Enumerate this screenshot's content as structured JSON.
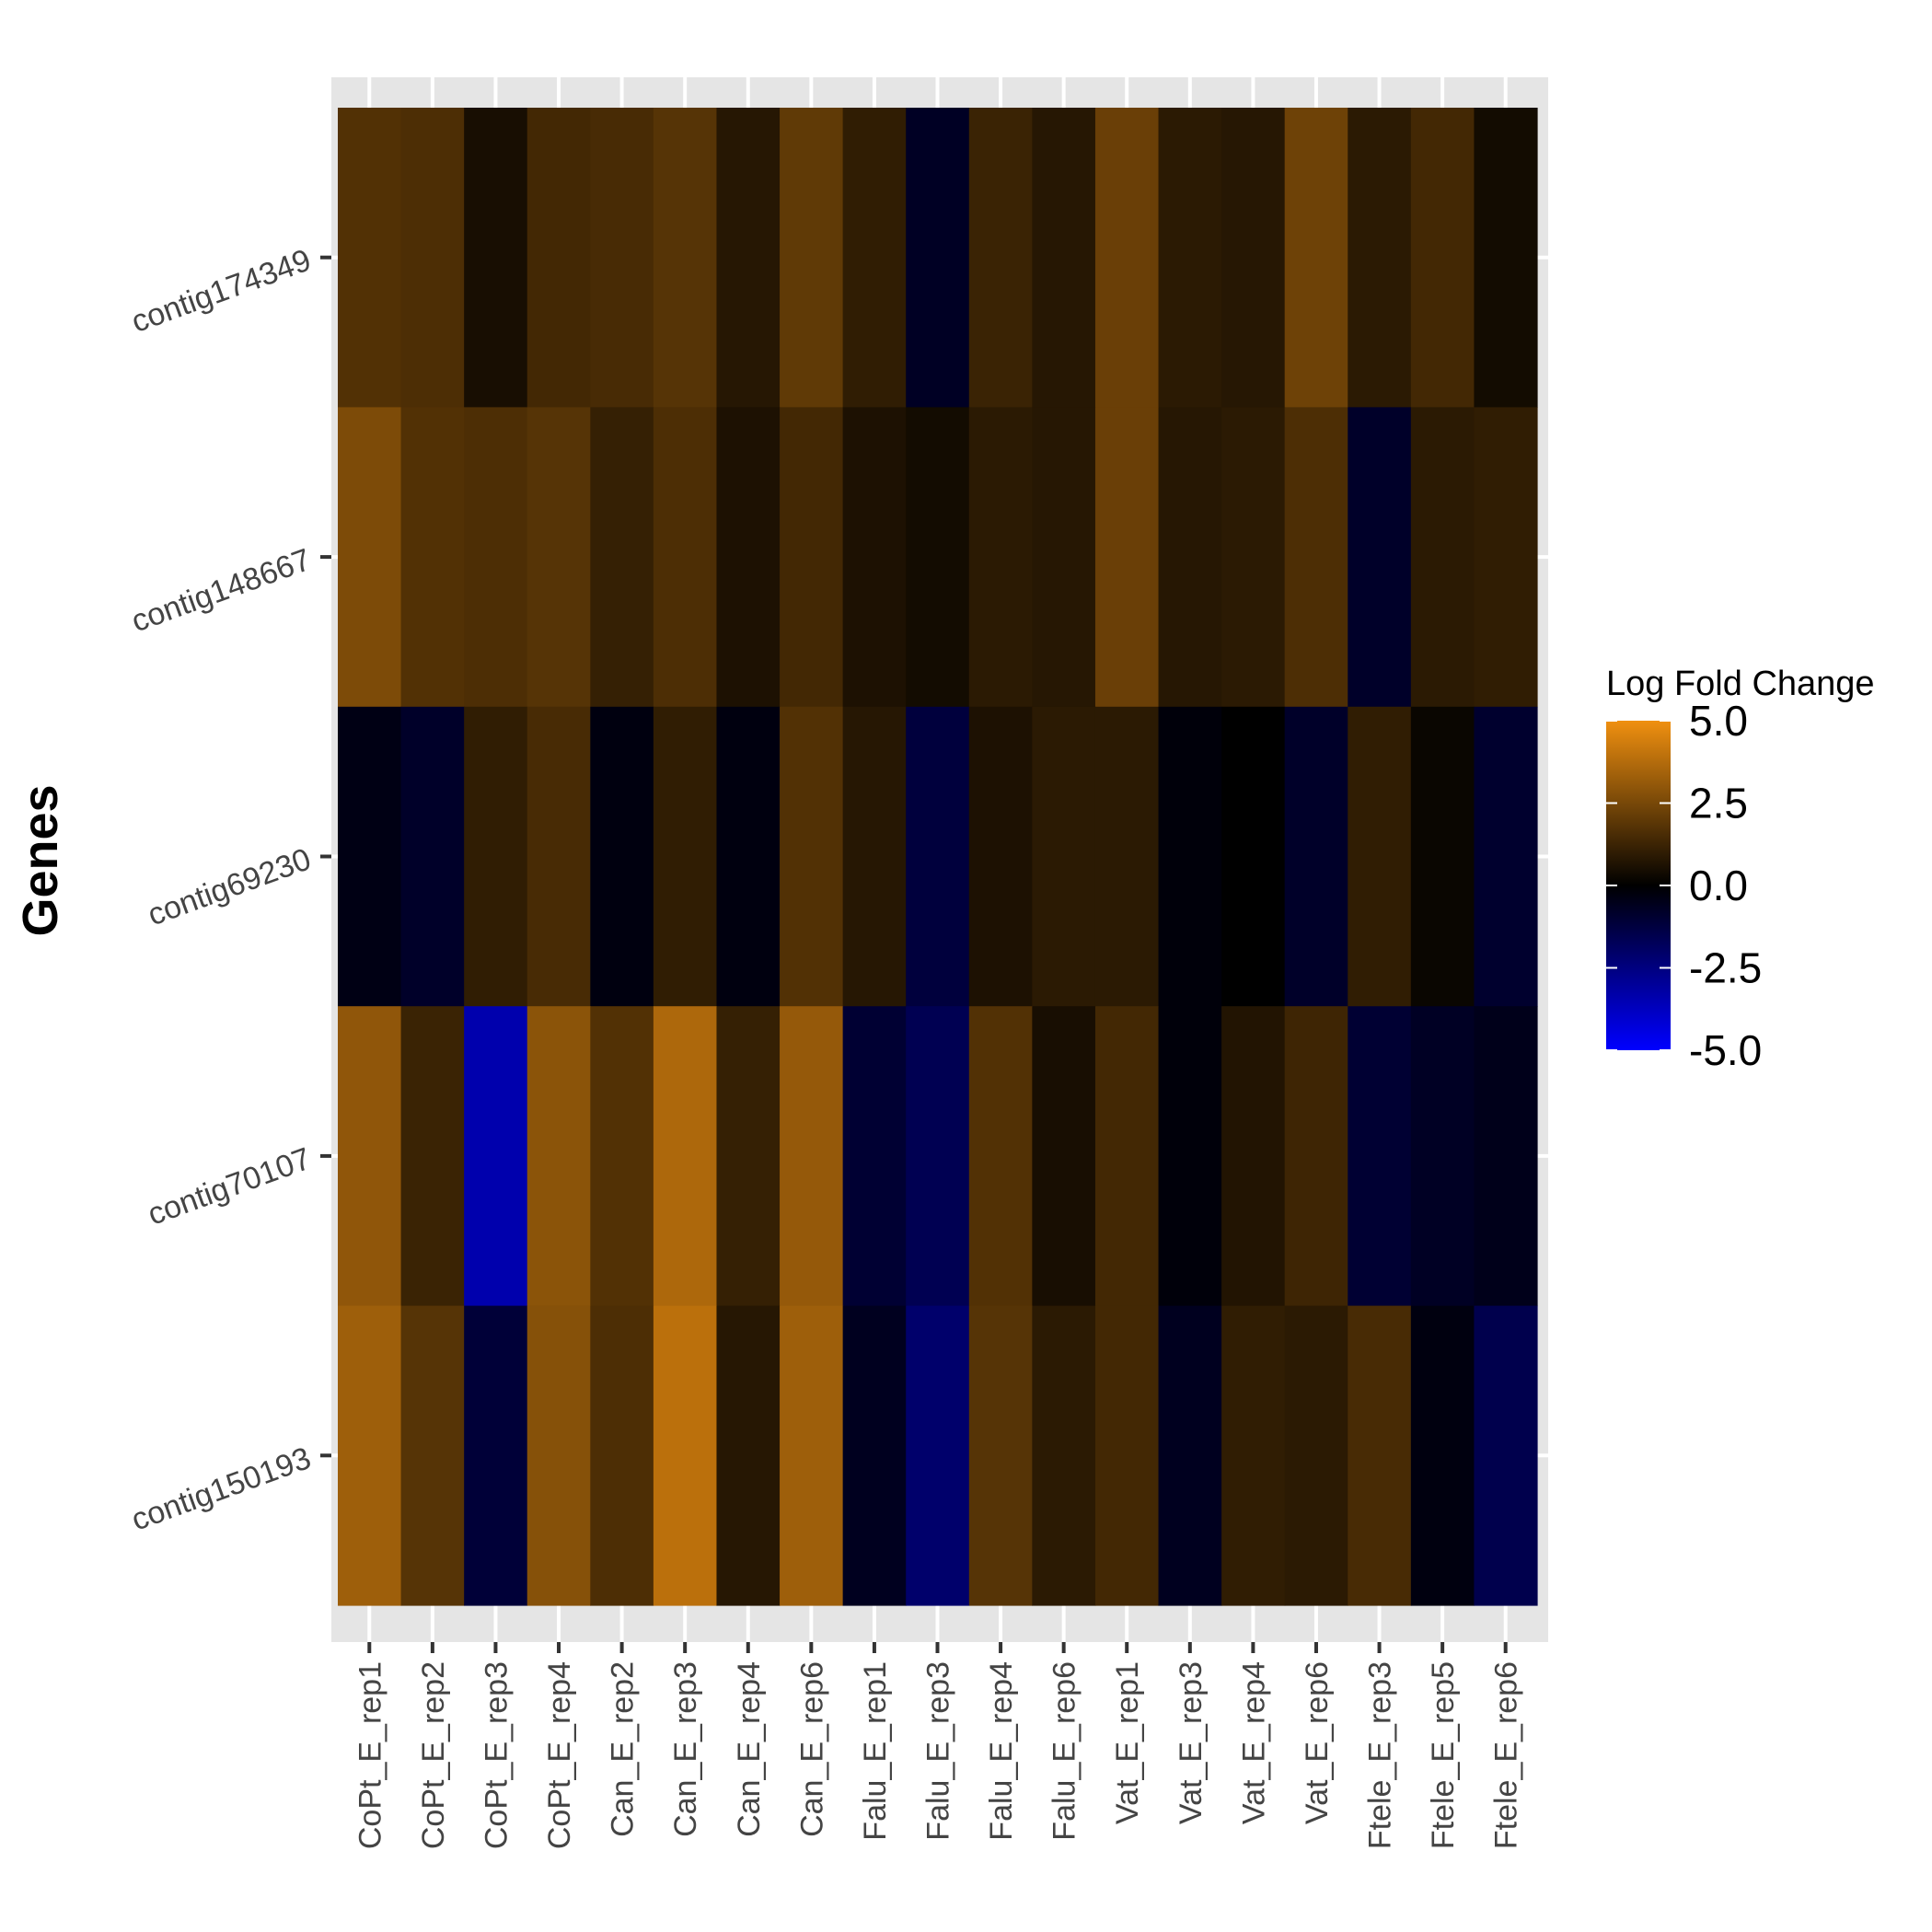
{
  "chart_data": {
    "type": "heatmap",
    "title": "",
    "xlabel": "",
    "ylabel": "Genes",
    "x_categories": [
      "CoPt_E_rep1",
      "CoPt_E_rep2",
      "CoPt_E_rep3",
      "CoPt_E_rep4",
      "Can_E_rep2",
      "Can_E_rep3",
      "Can_E_rep4",
      "Can_E_rep6",
      "Falu_E_rep1",
      "Falu_E_rep3",
      "Falu_E_rep4",
      "Falu_E_rep6",
      "Vat_E_rep1",
      "Vat_E_rep3",
      "Vat_E_rep4",
      "Vat_E_rep6",
      "Ftele_E_rep3",
      "Ftele_E_rep5",
      "Ftele_E_rep6"
    ],
    "y_categories": [
      "contig174349",
      "contig148667",
      "contig69230",
      "contig70107",
      "contig150193"
    ],
    "values": [
      [
        1.7,
        1.6,
        0.5,
        1.4,
        1.5,
        1.8,
        0.8,
        2.0,
        1.0,
        -0.7,
        1.2,
        0.8,
        2.2,
        0.9,
        0.8,
        2.3,
        0.9,
        1.4,
        0.4
      ],
      [
        2.6,
        1.7,
        1.6,
        1.8,
        1.1,
        1.6,
        0.6,
        1.4,
        0.6,
        0.4,
        0.9,
        0.8,
        2.2,
        0.8,
        0.9,
        1.6,
        -0.8,
        0.9,
        1.0
      ],
      [
        -0.4,
        -0.8,
        1.0,
        1.5,
        -0.3,
        1.0,
        -0.3,
        1.7,
        0.8,
        -1.2,
        0.6,
        0.9,
        0.9,
        -0.2,
        0.0,
        -0.8,
        1.0,
        0.2,
        -0.9
      ],
      [
        3.0,
        1.2,
        -3.4,
        2.9,
        1.7,
        3.6,
        1.1,
        3.1,
        -1.0,
        -1.6,
        1.7,
        0.5,
        1.4,
        -0.2,
        0.7,
        1.3,
        -1.0,
        -0.7,
        -0.5
      ],
      [
        3.3,
        1.8,
        -1.1,
        2.8,
        1.6,
        3.9,
        0.8,
        3.3,
        -0.6,
        -2.1,
        1.8,
        0.9,
        1.4,
        -0.6,
        1.0,
        0.9,
        1.5,
        -0.3,
        -1.5
      ]
    ],
    "colorscale": {
      "title": "Log Fold Change",
      "min": -5.0,
      "mid": 0.0,
      "max": 5.0,
      "low_color": "#0000ff",
      "mid_color": "#000000",
      "high_color": "#f09010",
      "tick_labels": [
        "5.0",
        "2.5",
        "0.0",
        "-2.5",
        "-5.0"
      ],
      "tick_values": [
        5.0,
        2.5,
        0.0,
        -2.5,
        -5.0
      ]
    },
    "panel_background": "#e5e5e5",
    "grid": true,
    "legend_position": "right"
  }
}
